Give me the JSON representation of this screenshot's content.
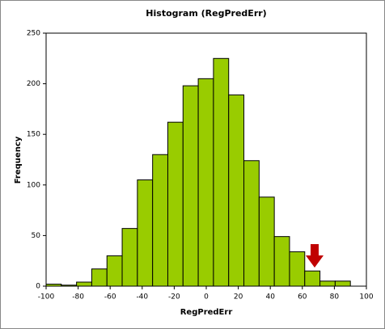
{
  "chart_data": {
    "type": "histogram",
    "title": "Histogram (RegPredErr)",
    "x_label": "RegPredErr",
    "y_label": "Frequency",
    "bins": [
      -100,
      -90.5,
      -81,
      -71.5,
      -62,
      -52.5,
      -43,
      -33.5,
      -24,
      -14.5,
      -5,
      4.5,
      14,
      23.5,
      33,
      42.5,
      52,
      61.5,
      71,
      80.5,
      90
    ],
    "values": [
      2,
      1,
      4,
      17,
      30,
      57,
      105,
      130,
      162,
      198,
      205,
      225,
      189,
      124,
      88,
      49,
      34,
      15,
      5,
      5
    ],
    "color": "#99cc00",
    "xlim": [
      -100,
      100
    ],
    "xticks": [
      -100,
      -80,
      -60,
      -40,
      -20,
      0,
      20,
      40,
      60,
      80,
      100
    ],
    "ylim": [
      0,
      250
    ],
    "yticks": [
      0,
      50,
      100,
      150,
      200,
      250
    ],
    "grid": false
  }
}
